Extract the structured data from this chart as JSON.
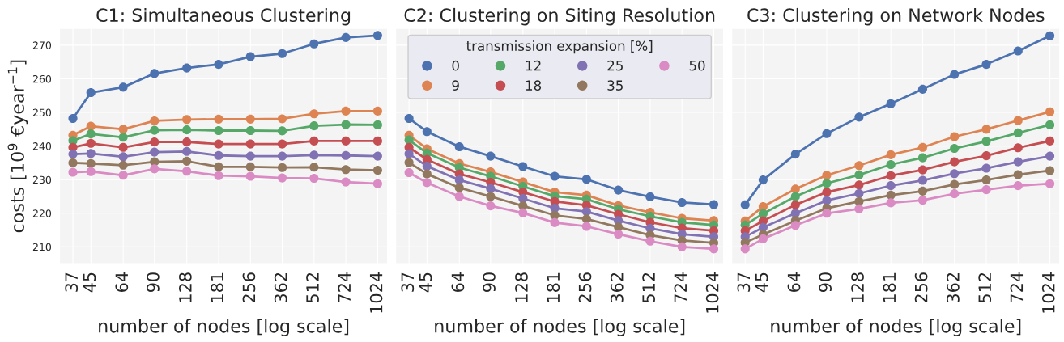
{
  "chart_data": [
    {
      "type": "line",
      "title": "C1: Simultaneous Clustering",
      "xlabel": "number of nodes [log scale]",
      "ylabel": "costs [10$^{9}$ €year$^{−1}$]",
      "log": "x",
      "x": [
        37,
        45,
        64,
        90,
        128,
        181,
        256,
        362,
        512,
        724,
        1024
      ],
      "xlim": [
        32,
        1140
      ],
      "xticks": [
        37,
        45,
        64,
        90,
        128,
        181,
        256,
        362,
        512,
        724,
        1024
      ],
      "ylim": [
        205,
        275
      ],
      "yticks": [
        210,
        220,
        230,
        240,
        250,
        260,
        270
      ],
      "grid": true,
      "marker": "circle",
      "legend": false,
      "series": [
        {
          "color": "#4c72b0",
          "values": [
            248.2,
            255.9,
            257.5,
            261.6,
            263.2,
            264.3,
            266.6,
            267.5,
            270.4,
            272.3,
            272.9
          ]
        },
        {
          "color": "#dd8452",
          "values": [
            243.2,
            245.9,
            245.0,
            247.5,
            247.9,
            248.0,
            248.0,
            248.1,
            249.6,
            250.4,
            250.4
          ]
        },
        {
          "color": "#55a868",
          "values": [
            241.6,
            243.6,
            242.6,
            244.7,
            244.8,
            244.6,
            244.6,
            244.5,
            246.0,
            246.4,
            246.3
          ]
        },
        {
          "color": "#c44e52",
          "values": [
            239.6,
            240.8,
            239.6,
            241.2,
            241.2,
            240.6,
            240.6,
            240.6,
            241.5,
            241.5,
            241.5
          ]
        },
        {
          "color": "#8172b3",
          "values": [
            237.6,
            237.8,
            236.8,
            238.2,
            238.4,
            237.2,
            237.0,
            237.0,
            237.3,
            237.2,
            237.0
          ]
        },
        {
          "color": "#937860",
          "values": [
            235.0,
            234.8,
            234.3,
            235.3,
            235.5,
            233.8,
            233.8,
            233.6,
            233.7,
            233.0,
            232.8
          ]
        },
        {
          "color": "#da8bc3",
          "values": [
            232.2,
            232.4,
            231.3,
            233.2,
            232.5,
            231.2,
            231.0,
            230.5,
            230.4,
            229.3,
            228.8
          ]
        }
      ]
    },
    {
      "type": "line",
      "title": "C2: Clustering on Siting Resolution",
      "xlabel": "number of nodes [log scale]",
      "log": "x",
      "x": [
        37,
        45,
        64,
        90,
        128,
        181,
        256,
        362,
        512,
        724,
        1024
      ],
      "xlim": [
        32,
        1140
      ],
      "xticks": [
        37,
        45,
        64,
        90,
        128,
        181,
        256,
        362,
        512,
        724,
        1024
      ],
      "ylim": [
        205,
        275
      ],
      "yticks": [
        210,
        220,
        230,
        240,
        250,
        260,
        270
      ],
      "tick_labels": "x",
      "grid": true,
      "marker": "circle",
      "legend": "top",
      "legend_title": "transmission expansion [%]",
      "series": [
        {
          "name": "0",
          "color": "#4c72b0",
          "values": [
            248.2,
            244.3,
            239.8,
            237.0,
            233.9,
            231.0,
            230.1,
            226.9,
            224.9,
            223.2,
            222.6
          ]
        },
        {
          "name": "9",
          "color": "#dd8452",
          "values": [
            243.2,
            239.2,
            234.8,
            232.3,
            229.3,
            226.3,
            225.4,
            222.3,
            220.3,
            218.5,
            217.8
          ]
        },
        {
          "name": "12",
          "color": "#55a868",
          "values": [
            241.8,
            237.9,
            233.6,
            231.0,
            228.0,
            225.1,
            224.2,
            221.2,
            219.1,
            217.3,
            216.5
          ]
        },
        {
          "name": "18",
          "color": "#c44e52",
          "values": [
            239.6,
            236.0,
            231.7,
            229.2,
            226.3,
            223.5,
            222.4,
            219.7,
            217.3,
            215.6,
            214.8
          ]
        },
        {
          "name": "25",
          "color": "#8172b3",
          "values": [
            237.7,
            234.0,
            229.9,
            227.3,
            224.4,
            221.5,
            220.5,
            217.8,
            215.5,
            213.8,
            213.0
          ]
        },
        {
          "name": "35",
          "color": "#937860",
          "values": [
            235.1,
            231.7,
            227.6,
            225.0,
            222.2,
            219.4,
            218.3,
            215.9,
            213.5,
            211.9,
            211.2
          ]
        },
        {
          "name": "50",
          "color": "#da8bc3",
          "values": [
            232.1,
            229.1,
            225.0,
            222.2,
            220.1,
            217.2,
            216.1,
            213.8,
            211.7,
            210.0,
            209.4
          ]
        }
      ]
    },
    {
      "type": "line",
      "title": "C3: Clustering on Network Nodes",
      "xlabel": "number of nodes [log scale]",
      "log": "x",
      "x": [
        37,
        45,
        64,
        90,
        128,
        181,
        256,
        362,
        512,
        724,
        1024
      ],
      "xlim": [
        32,
        1140
      ],
      "xticks": [
        37,
        45,
        64,
        90,
        128,
        181,
        256,
        362,
        512,
        724,
        1024
      ],
      "ylim": [
        205,
        275
      ],
      "yticks": [
        210,
        220,
        230,
        240,
        250,
        260,
        270
      ],
      "tick_labels": "x",
      "grid": true,
      "marker": "circle",
      "legend": false,
      "series": [
        {
          "color": "#4c72b0",
          "values": [
            222.5,
            229.9,
            237.6,
            243.7,
            248.6,
            252.6,
            256.9,
            261.3,
            264.3,
            268.3,
            272.8
          ]
        },
        {
          "color": "#dd8452",
          "values": [
            217.7,
            222.0,
            227.2,
            231.3,
            234.2,
            237.4,
            239.6,
            242.8,
            245.0,
            247.6,
            250.2
          ]
        },
        {
          "color": "#55a868",
          "values": [
            216.5,
            219.9,
            225.0,
            228.9,
            231.4,
            234.5,
            236.5,
            239.3,
            241.4,
            243.9,
            246.3
          ]
        },
        {
          "color": "#c44e52",
          "values": [
            214.8,
            217.7,
            222.5,
            226.3,
            228.4,
            231.2,
            232.9,
            235.3,
            237.1,
            239.5,
            241.5
          ]
        },
        {
          "color": "#8172b3",
          "values": [
            213.0,
            215.8,
            220.0,
            223.8,
            225.9,
            228.2,
            229.8,
            231.8,
            233.4,
            235.3,
            237.0
          ]
        },
        {
          "color": "#937860",
          "values": [
            211.3,
            213.7,
            217.8,
            221.5,
            223.5,
            225.4,
            226.6,
            228.6,
            229.9,
            231.5,
            232.7
          ]
        },
        {
          "color": "#da8bc3",
          "values": [
            209.4,
            212.4,
            216.4,
            220.0,
            221.3,
            223.1,
            223.9,
            225.8,
            227.0,
            228.2,
            228.8
          ]
        }
      ]
    }
  ]
}
